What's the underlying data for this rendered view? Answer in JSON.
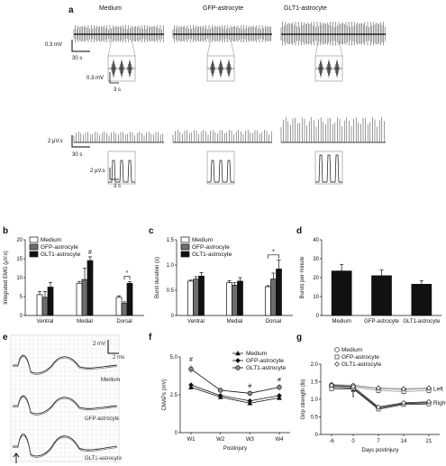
{
  "panel_labels": {
    "a": "a",
    "b": "b",
    "c": "c",
    "d": "d",
    "e": "e",
    "f": "f",
    "g": "g"
  },
  "panel_a": {
    "columns": [
      "Medium",
      "GFP-astrocyte",
      "GLT1-astrocyte"
    ],
    "top_scale_y": "0.3 mV",
    "top_scale_x": "30 s",
    "top_inset_scale_y": "0.3 mV",
    "top_inset_scale_x": "3 s",
    "bottom_scale_y": "2 μV.s",
    "bottom_scale_x": "30 s",
    "bottom_inset_scale_y": "2 μV.s",
    "bottom_inset_scale_x": "3 s"
  },
  "panel_e": {
    "scale_y": "2 mV",
    "scale_x": "2 ms",
    "traces": [
      "Medium",
      "GFP-astrocyte",
      "GLT1-astrocyte"
    ]
  },
  "colors": {
    "medium": "#ffffff",
    "gfp": "#6e6e6e",
    "glt1": "#111111",
    "left_line": "#9a9a9a",
    "right_line": "#222222"
  },
  "chart_data": [
    {
      "id": "b",
      "type": "bar",
      "title": "",
      "xlabel": "",
      "ylabel": "Integrated EMG (μV.s)",
      "ylim": [
        0,
        20
      ],
      "yticks": [
        "0",
        "5",
        "10",
        "15",
        "20"
      ],
      "categories": [
        "Ventral",
        "Medial",
        "Dorsal"
      ],
      "legend": {
        "position": "top-left"
      },
      "series": [
        {
          "name": "Medium",
          "values": [
            5.5,
            8.5,
            4.8
          ],
          "errors": [
            0.8,
            0.5,
            0.4
          ]
        },
        {
          "name": "GFP-astrocyte",
          "values": [
            4.8,
            9.5,
            3.2
          ],
          "errors": [
            1.5,
            3.0,
            0.4
          ]
        },
        {
          "name": "GLT1-astrocyte",
          "values": [
            7.5,
            14.5,
            8.5
          ],
          "errors": [
            1.2,
            1.0,
            0.4
          ]
        }
      ],
      "annotations": [
        {
          "text": "#",
          "category": "Medial",
          "series": "GLT1-astrocyte",
          "y": 16.2
        },
        {
          "text": "*",
          "category": "Dorsal",
          "between": [
            "GFP-astrocyte",
            "GLT1-astrocyte"
          ],
          "y": 10.4
        }
      ]
    },
    {
      "id": "c",
      "type": "bar",
      "title": "",
      "xlabel": "",
      "ylabel": "Burst duration (s)",
      "ylim": [
        0,
        1.5
      ],
      "yticks": [
        "0",
        "0.5",
        "1.0",
        "1.5"
      ],
      "categories": [
        "Ventral",
        "Medial",
        "Dorsal"
      ],
      "legend": {
        "position": "top-left"
      },
      "series": [
        {
          "name": "Medium",
          "values": [
            0.68,
            0.65,
            0.57
          ],
          "errors": [
            0.02,
            0.04,
            0.02
          ]
        },
        {
          "name": "GFP-astrocyte",
          "values": [
            0.72,
            0.6,
            0.72
          ],
          "errors": [
            0.05,
            0.05,
            0.12
          ]
        },
        {
          "name": "GLT1-astrocyte",
          "values": [
            0.78,
            0.68,
            0.92
          ],
          "errors": [
            0.07,
            0.07,
            0.18
          ]
        }
      ],
      "annotations": [
        {
          "text": "*",
          "category": "Dorsal",
          "between": [
            "Medium",
            "GLT1-astrocyte"
          ],
          "y": 1.2
        }
      ]
    },
    {
      "id": "d",
      "type": "bar",
      "title": "",
      "xlabel": "",
      "ylabel": "Bursts per minute",
      "ylim": [
        0,
        40
      ],
      "yticks": [
        "0",
        "10",
        "20",
        "30",
        "40"
      ],
      "categories": [
        "Medium",
        "GFP-astrocyte",
        "GLT1-astrocyte"
      ],
      "series": [
        {
          "name": "",
          "values": [
            23.5,
            21,
            16.5
          ],
          "errors": [
            3.5,
            3.0,
            1.8
          ]
        }
      ]
    },
    {
      "id": "f",
      "type": "line",
      "title": "",
      "xlabel": "Postinjury",
      "ylabel": "CMAPs (mV)",
      "ylim": [
        0,
        5
      ],
      "yticks": [
        "0",
        "2.5",
        "5.0"
      ],
      "categories": [
        "W1",
        "W2",
        "W3",
        "W4"
      ],
      "legend": {
        "position": "top-right"
      },
      "series": [
        {
          "name": "Medium",
          "marker": "triangle",
          "values": [
            3.0,
            2.35,
            1.95,
            2.3
          ],
          "errors": [
            0.15,
            0.1,
            0.1,
            0.15
          ]
        },
        {
          "name": "GFP-astrocyte",
          "marker": "diamond",
          "values": [
            3.15,
            2.45,
            2.1,
            2.45
          ],
          "errors": [
            0.15,
            0.1,
            0.1,
            0.15
          ]
        },
        {
          "name": "GLT1-astrocyte",
          "marker": "circle",
          "values": [
            4.2,
            2.8,
            2.6,
            3.0
          ],
          "errors": [
            0.25,
            0.15,
            0.15,
            0.2
          ]
        }
      ],
      "annotations": [
        {
          "text": "#",
          "category": "W1",
          "y": 4.7
        },
        {
          "text": "#",
          "category": "W3",
          "y": 2.95
        },
        {
          "text": "#",
          "category": "W4",
          "y": 3.35
        }
      ]
    },
    {
      "id": "g",
      "type": "line",
      "title": "",
      "xlabel": "Days postinjury",
      "ylabel": "Grip strength (lb)",
      "ylim": [
        0,
        2.0
      ],
      "xlim": [
        -9,
        24
      ],
      "xticks": [
        "-6",
        "0",
        "7",
        "14",
        "21"
      ],
      "yticks": [
        "0",
        "0.5",
        "1.0",
        "1.5",
        "2.0"
      ],
      "x": [
        -6,
        0,
        7,
        14,
        21
      ],
      "legend": {
        "position": "top-center",
        "entries": [
          "Medium",
          "GFP-astrocyte",
          "GLT1-astrocyte"
        ]
      },
      "series_labels": {
        "left": "Left",
        "right": "Right"
      },
      "injury_arrow_x": 0,
      "series": [
        {
          "name": "Medium Left",
          "side": "left",
          "marker": "circle",
          "values": [
            1.4,
            1.38,
            1.3,
            1.28,
            1.3
          ],
          "errors": [
            0.05,
            0.05,
            0.1,
            0.1,
            0.08
          ]
        },
        {
          "name": "GFP-astrocyte Left",
          "side": "left",
          "marker": "square",
          "values": [
            1.38,
            1.35,
            1.25,
            1.22,
            1.25
          ],
          "errors": [
            0.05,
            0.05,
            0.1,
            0.1,
            0.08
          ]
        },
        {
          "name": "GLT1-astrocyte Left",
          "side": "left",
          "marker": "diamond",
          "values": [
            1.42,
            1.4,
            1.32,
            1.3,
            1.32
          ],
          "errors": [
            0.05,
            0.05,
            0.1,
            0.1,
            0.08
          ]
        },
        {
          "name": "Medium Right",
          "side": "right",
          "marker": "circle",
          "values": [
            1.35,
            1.32,
            0.75,
            0.88,
            0.9
          ],
          "errors": [
            0.05,
            0.05,
            0.06,
            0.06,
            0.06
          ]
        },
        {
          "name": "GFP-astrocyte Right",
          "side": "right",
          "marker": "square",
          "values": [
            1.3,
            1.3,
            0.72,
            0.85,
            0.87
          ],
          "errors": [
            0.05,
            0.05,
            0.06,
            0.06,
            0.06
          ]
        },
        {
          "name": "GLT1-astrocyte Right",
          "side": "right",
          "marker": "diamond",
          "values": [
            1.4,
            1.36,
            0.78,
            0.9,
            0.93
          ],
          "errors": [
            0.05,
            0.05,
            0.06,
            0.06,
            0.06
          ]
        }
      ]
    }
  ]
}
